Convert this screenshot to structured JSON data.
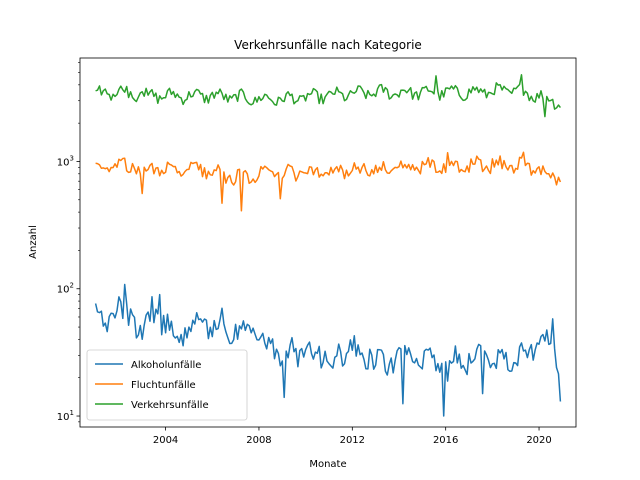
{
  "chart_data": {
    "type": "line",
    "title": "Verkehrsunfälle nach Kategorie",
    "xlabel": "Monate",
    "ylabel": "Anzahl",
    "x_axis": {
      "type": "date",
      "start": "2001-01",
      "end": "2020-12",
      "frequency": "monthly"
    },
    "xlim": [
      "2000-05",
      "2021-08"
    ],
    "xticks": [
      "2004",
      "2008",
      "2012",
      "2016",
      "2020"
    ],
    "ylim": [
      8,
      650000
    ],
    "y_scale": "log",
    "ylim_display": [
      8.2,
      6500
    ],
    "yticks": [
      {
        "value": 10,
        "base": "10",
        "exp": "1"
      },
      {
        "value": 100,
        "base": "10",
        "exp": "2"
      },
      {
        "value": 1000,
        "base": "10",
        "exp": "3"
      }
    ],
    "grid": false,
    "legend_position": "lower-left",
    "series": [
      {
        "name": "Alkoholunfälle",
        "color": "#1f77b4",
        "anchors": [
          [
            "2001-01",
            66
          ],
          [
            "2001-06",
            52
          ],
          [
            "2002-01",
            75
          ],
          [
            "2002-06",
            60
          ],
          [
            "2003-01",
            48
          ],
          [
            "2003-06",
            70
          ],
          [
            "2004-01",
            52
          ],
          [
            "2004-06",
            45
          ],
          [
            "2005-01",
            42
          ],
          [
            "2005-06",
            55
          ],
          [
            "2006-01",
            47
          ],
          [
            "2006-06",
            60
          ],
          [
            "2007-01",
            44
          ],
          [
            "2007-06",
            50
          ],
          [
            "2008-01",
            40
          ],
          [
            "2008-06",
            36
          ],
          [
            "2009-01",
            30
          ],
          [
            "2009-06",
            34
          ],
          [
            "2010-01",
            30
          ],
          [
            "2010-06",
            32
          ],
          [
            "2011-01",
            27
          ],
          [
            "2011-06",
            30
          ],
          [
            "2012-01",
            35
          ],
          [
            "2012-06",
            31
          ],
          [
            "2013-01",
            28
          ],
          [
            "2013-06",
            26
          ],
          [
            "2014-01",
            30
          ],
          [
            "2014-06",
            28
          ],
          [
            "2015-01",
            26
          ],
          [
            "2015-06",
            29
          ],
          [
            "2016-01",
            22
          ],
          [
            "2016-06",
            30
          ],
          [
            "2017-01",
            26
          ],
          [
            "2017-06",
            33
          ],
          [
            "2018-01",
            26
          ],
          [
            "2018-06",
            32
          ],
          [
            "2019-01",
            28
          ],
          [
            "2019-06",
            34
          ],
          [
            "2020-01",
            36
          ],
          [
            "2020-06",
            40
          ],
          [
            "2020-12",
            22
          ]
        ],
        "extremes": [
          [
            "2002-04",
            108
          ],
          [
            "2003-10",
            90
          ],
          [
            "2009-02",
            14
          ],
          [
            "2014-03",
            12.5
          ],
          [
            "2015-12",
            10
          ],
          [
            "2017-08",
            15
          ],
          [
            "2020-08",
            58
          ],
          [
            "2020-12",
            13
          ]
        ],
        "noise_factor": 0.22
      },
      {
        "name": "Fluchtunfälle",
        "color": "#ff7f0e",
        "anchors": [
          [
            "2001-01",
            880
          ],
          [
            "2002-01",
            930
          ],
          [
            "2003-01",
            860
          ],
          [
            "2004-01",
            860
          ],
          [
            "2005-01",
            880
          ],
          [
            "2006-01",
            860
          ],
          [
            "2007-01",
            740
          ],
          [
            "2008-01",
            790
          ],
          [
            "2009-01",
            800
          ],
          [
            "2010-01",
            830
          ],
          [
            "2011-01",
            840
          ],
          [
            "2012-01",
            850
          ],
          [
            "2013-01",
            870
          ],
          [
            "2014-01",
            890
          ],
          [
            "2015-01",
            900
          ],
          [
            "2016-01",
            920
          ],
          [
            "2017-01",
            930
          ],
          [
            "2018-01",
            940
          ],
          [
            "2019-01",
            950
          ],
          [
            "2020-01",
            880
          ],
          [
            "2020-12",
            760
          ]
        ],
        "extremes": [
          [
            "2003-01",
            560
          ],
          [
            "2006-06",
            470
          ],
          [
            "2007-04",
            410
          ],
          [
            "2008-12",
            510
          ],
          [
            "2016-02",
            1170
          ],
          [
            "2019-05",
            1180
          ],
          [
            "2020-12",
            690
          ]
        ],
        "noise_factor": 0.12
      },
      {
        "name": "Verkehrsunfälle",
        "color": "#2ca02c",
        "anchors": [
          [
            "2001-01",
            3400
          ],
          [
            "2002-01",
            3500
          ],
          [
            "2003-01",
            3300
          ],
          [
            "2004-01",
            3300
          ],
          [
            "2005-01",
            3300
          ],
          [
            "2006-01",
            3300
          ],
          [
            "2007-01",
            3200
          ],
          [
            "2008-01",
            3100
          ],
          [
            "2009-01",
            3100
          ],
          [
            "2010-01",
            3200
          ],
          [
            "2011-01",
            3300
          ],
          [
            "2012-01",
            3400
          ],
          [
            "2013-01",
            3500
          ],
          [
            "2014-01",
            3500
          ],
          [
            "2015-01",
            3500
          ],
          [
            "2016-01",
            3500
          ],
          [
            "2017-01",
            3500
          ],
          [
            "2018-01",
            3600
          ],
          [
            "2019-01",
            3600
          ],
          [
            "2020-01",
            3300
          ],
          [
            "2020-12",
            2900
          ]
        ],
        "extremes": [
          [
            "2015-08",
            4700
          ],
          [
            "2019-04",
            4800
          ],
          [
            "2020-04",
            2250
          ],
          [
            "2020-12",
            2650
          ]
        ],
        "noise_factor": 0.1
      }
    ]
  }
}
